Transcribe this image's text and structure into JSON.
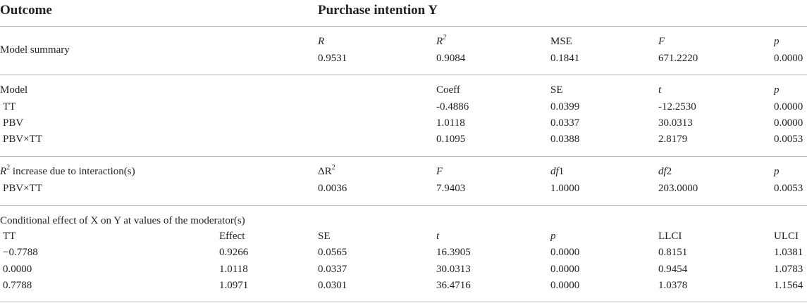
{
  "header": {
    "col1": "Outcome",
    "col2": "Purchase intention Y"
  },
  "model_summary": {
    "label": "Model summary",
    "h_r": "R",
    "h_r2": "R",
    "h_r2_sup": "2",
    "h_mse": "MSE",
    "h_f": "F",
    "h_p": "p",
    "r": "0.9531",
    "r2": "0.9084",
    "mse": "0.1841",
    "f": "671.2220",
    "p": "0.0000"
  },
  "model": {
    "label": "Model",
    "h_coeff": "Coeff",
    "h_se": "SE",
    "h_t": "t",
    "h_p": "p",
    "rows": [
      {
        "name": "TT",
        "coeff": "-0.4886",
        "se": "0.0399",
        "t": "-12.2530",
        "p": "0.0000"
      },
      {
        "name": "PBV",
        "coeff": "1.0118",
        "se": "0.0337",
        "t": "30.0313",
        "p": "0.0000"
      },
      {
        "name": "PBV×TT",
        "coeff": "0.1095",
        "se": "0.0388",
        "t": "2.8179",
        "p": "0.0053"
      }
    ]
  },
  "interaction": {
    "label_r": "R",
    "label_sup": "2",
    "label_rest": " increase due to interaction(s)",
    "h_dr2": "ΔR",
    "h_dr2_sup": "2",
    "h_f": "F",
    "h_df1_i": "df",
    "h_df1_n": "1",
    "h_df2_i": "df",
    "h_df2_n": "2",
    "h_p": "p",
    "row": {
      "name": "PBV×TT",
      "dr2": "0.0036",
      "f": "7.9403",
      "df1": "1.0000",
      "df2": "203.0000",
      "p": "0.0053"
    }
  },
  "conditional": {
    "label": "Conditional effect of X on Y at values of the moderator(s)",
    "h_tt": "TT",
    "h_effect": "Effect",
    "h_se": "SE",
    "h_t": "t",
    "h_p": "p",
    "h_llci": "LLCI",
    "h_ulci": "ULCI",
    "rows": [
      {
        "tt": "−0.7788",
        "effect": "0.9266",
        "se": "0.0565",
        "t": "16.3905",
        "p": "0.0000",
        "llci": "0.8151",
        "ulci": "1.0381"
      },
      {
        "tt": "0.0000",
        "effect": "1.0118",
        "se": "0.0337",
        "t": "30.0313",
        "p": "0.0000",
        "llci": "0.9454",
        "ulci": "1.0783"
      },
      {
        "tt": "0.7788",
        "effect": "1.0971",
        "se": "0.0301",
        "t": "36.4716",
        "p": "0.0000",
        "llci": "1.0378",
        "ulci": "1.1564"
      }
    ]
  }
}
